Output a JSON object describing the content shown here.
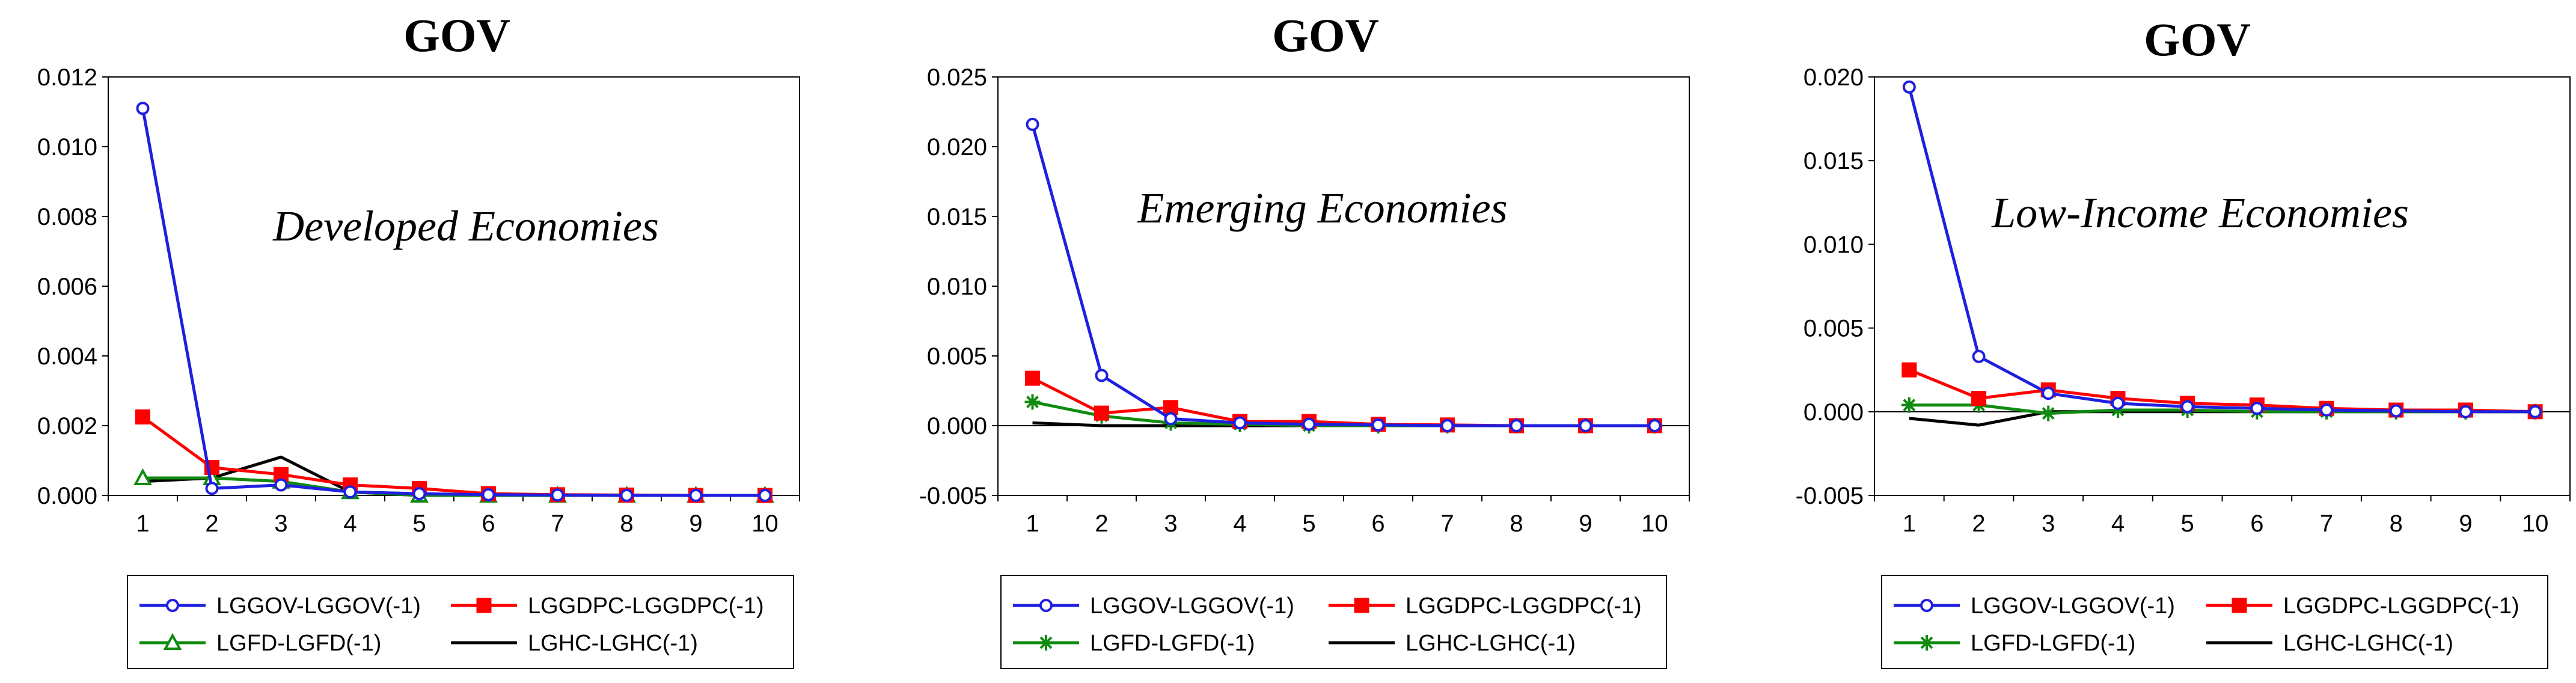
{
  "chart_data": [
    {
      "type": "line",
      "title": "GOV",
      "annotation": "Developed Economies",
      "x": [
        1,
        2,
        3,
        4,
        5,
        6,
        7,
        8,
        9,
        10
      ],
      "xlabel": "",
      "ylabel": "",
      "ylim": [
        0,
        0.012
      ],
      "yticks": [
        "0.000",
        "0.002",
        "0.004",
        "0.006",
        "0.008",
        "0.010",
        "0.012"
      ],
      "zero_line": false,
      "series": [
        {
          "name": "LGGOV-LGGOV(-1)",
          "color": "#1f1fe0",
          "marker": "circle",
          "values": [
            0.0111,
            0.0002,
            0.0003,
            0.0001,
            5e-05,
            2e-05,
            1e-05,
            0.0,
            0.0,
            0.0
          ]
        },
        {
          "name": "LGGDPC-LGGDPC(-1)",
          "color": "#ff0000",
          "marker": "square",
          "values": [
            0.00225,
            0.0008,
            0.0006,
            0.0003,
            0.0002,
            5e-05,
            2e-05,
            1e-05,
            0.0,
            0.0
          ]
        },
        {
          "name": "LGFD-LGFD(-1)",
          "color": "#108a10",
          "marker": "triangle",
          "values": [
            0.0005,
            0.0005,
            0.0004,
            0.0001,
            0.0,
            0.0,
            0.0,
            0.0,
            0.0,
            0.0
          ]
        },
        {
          "name": "LGHC-LGHC(-1)",
          "color": "#000000",
          "marker": "none",
          "values": [
            0.0004,
            0.0005,
            0.0011,
            0.0001,
            0.0,
            0.0,
            0.0,
            0.0,
            0.0,
            0.0
          ]
        }
      ]
    },
    {
      "type": "line",
      "title": "GOV",
      "annotation": "Emerging Economies",
      "x": [
        1,
        2,
        3,
        4,
        5,
        6,
        7,
        8,
        9,
        10
      ],
      "xlabel": "",
      "ylabel": "",
      "ylim": [
        -0.005,
        0.025
      ],
      "yticks": [
        "-0.005",
        "0.000",
        "0.005",
        "0.010",
        "0.015",
        "0.020",
        "0.025"
      ],
      "zero_line": true,
      "series": [
        {
          "name": "LGGOV-LGGOV(-1)",
          "color": "#1f1fe0",
          "marker": "circle",
          "values": [
            0.0216,
            0.0036,
            0.0005,
            0.0002,
            0.0001,
            5e-05,
            0.0,
            0.0,
            0.0,
            0.0
          ]
        },
        {
          "name": "LGGDPC-LGGDPC(-1)",
          "color": "#ff0000",
          "marker": "square",
          "values": [
            0.0034,
            0.0009,
            0.0013,
            0.0003,
            0.0003,
            0.0001,
            5e-05,
            0.0,
            0.0,
            0.0
          ]
        },
        {
          "name": "LGFD-LGFD(-1)",
          "color": "#108a10",
          "marker": "star",
          "values": [
            0.0017,
            0.0007,
            0.0002,
            0.0001,
            0.0,
            0.0,
            0.0,
            0.0,
            0.0,
            0.0
          ]
        },
        {
          "name": "LGHC-LGHC(-1)",
          "color": "#000000",
          "marker": "none",
          "values": [
            0.0002,
            0.0,
            0.0,
            0.0,
            0.0,
            0.0,
            0.0,
            0.0,
            0.0,
            0.0
          ]
        }
      ]
    },
    {
      "type": "line",
      "title": "GOV",
      "annotation": "Low-Income Economies",
      "x": [
        1,
        2,
        3,
        4,
        5,
        6,
        7,
        8,
        9,
        10
      ],
      "xlabel": "",
      "ylabel": "",
      "ylim": [
        -0.005,
        0.02
      ],
      "yticks": [
        "-0.005",
        "0.000",
        "0.005",
        "0.010",
        "0.015",
        "0.020"
      ],
      "zero_line": true,
      "series": [
        {
          "name": "LGGOV-LGGOV(-1)",
          "color": "#1f1fe0",
          "marker": "circle",
          "values": [
            0.0194,
            0.0033,
            0.0011,
            0.0005,
            0.0003,
            0.0002,
            0.0001,
            5e-05,
            0.0,
            0.0
          ]
        },
        {
          "name": "LGGDPC-LGGDPC(-1)",
          "color": "#ff0000",
          "marker": "square",
          "values": [
            0.0025,
            0.0008,
            0.0013,
            0.0008,
            0.0005,
            0.0004,
            0.0002,
            0.0001,
            0.0001,
            0.0
          ]
        },
        {
          "name": "LGFD-LGFD(-1)",
          "color": "#108a10",
          "marker": "star",
          "values": [
            0.0004,
            0.0004,
            -0.0001,
            0.0001,
            0.0001,
            0.0,
            0.0,
            0.0,
            0.0,
            0.0
          ]
        },
        {
          "name": "LGHC-LGHC(-1)",
          "color": "#000000",
          "marker": "none",
          "values": [
            -0.0004,
            -0.0008,
            0.0,
            0.0,
            0.0,
            0.0,
            0.0,
            0.0,
            0.0,
            0.0
          ]
        }
      ]
    }
  ]
}
